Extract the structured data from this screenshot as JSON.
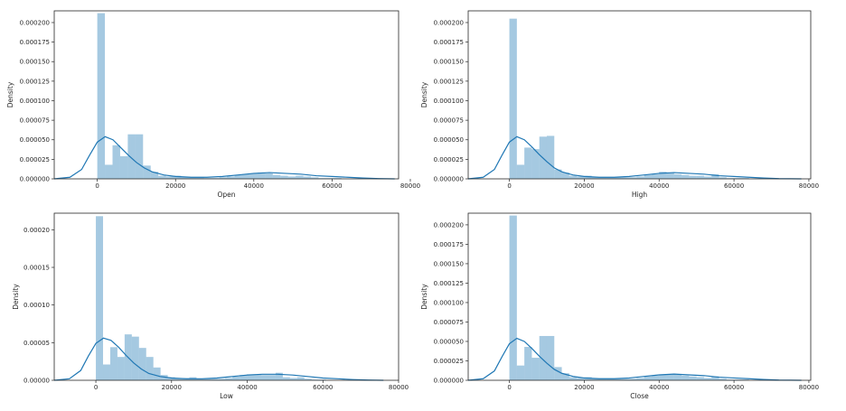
{
  "chart_data": [
    {
      "type": "histogram+kde",
      "xlabel": "Open",
      "ylabel": "Density",
      "xlim": [
        -11000,
        77000
      ],
      "ylim": [
        0,
        0.000215
      ],
      "xticks": [
        "0",
        "20000",
        "40000",
        "60000",
        "80000"
      ],
      "yticks": [
        "0.000000",
        "0.000025",
        "0.000050",
        "0.000075",
        "0.000100",
        "0.000125",
        "0.000150",
        "0.000175",
        "0.000200"
      ],
      "bin_width": 1950,
      "bin_start": 0,
      "values": [
        0.000212,
        1.8e-05,
        4.3e-05,
        2.9e-05,
        5.7e-05,
        5.7e-05,
        1.7e-05,
        9e-06,
        4e-06,
        3e-06,
        4e-06,
        2e-06,
        2e-06,
        2e-06,
        1e-06,
        1e-06,
        2e-06,
        3e-06,
        5e-06,
        6e-06,
        7e-06,
        8e-06,
        7e-06,
        5e-06,
        4e-06,
        3e-06,
        4e-06,
        3e-06,
        2e-06,
        1e-06,
        1e-06,
        1e-06
      ],
      "kde_x": [
        -11000,
        -7000,
        -4000,
        -2000,
        0,
        2000,
        4000,
        6000,
        8000,
        10000,
        12000,
        14000,
        17000,
        20000,
        24000,
        28000,
        32000,
        36000,
        40000,
        44000,
        48000,
        52000,
        56000,
        60000,
        64000,
        68000,
        72000,
        76000
      ],
      "kde_y": [
        0,
        2e-06,
        1.2e-05,
        3e-05,
        4.7e-05,
        5.4e-05,
        5e-05,
        4e-05,
        3e-05,
        2.1e-05,
        1.4e-05,
        9e-06,
        5e-06,
        3e-06,
        2e-06,
        2e-06,
        3e-06,
        5e-06,
        7e-06,
        8e-06,
        7e-06,
        6e-06,
        4e-06,
        3e-06,
        2e-06,
        1e-06,
        3e-07,
        0
      ]
    },
    {
      "type": "histogram+kde",
      "xlabel": "High",
      "ylabel": "Density",
      "xlim": [
        -11000,
        80500
      ],
      "ylim": [
        0,
        0.000215
      ],
      "xticks": [
        "0",
        "20000",
        "40000",
        "60000",
        "80000"
      ],
      "yticks": [
        "0.000000",
        "0.000025",
        "0.000050",
        "0.000075",
        "0.000100",
        "0.000125",
        "0.000150",
        "0.000175",
        "0.000200"
      ],
      "bin_width": 2000,
      "bin_start": 0,
      "values": [
        0.000205,
        1.8e-05,
        4e-05,
        3.8e-05,
        5.4e-05,
        5.5e-05,
        1.2e-05,
        8e-06,
        4e-06,
        3e-06,
        4e-06,
        2e-06,
        2e-06,
        2e-06,
        2e-06,
        2e-06,
        2e-06,
        3e-06,
        5e-06,
        6e-06,
        9e-06,
        8e-06,
        6e-06,
        5e-06,
        4e-06,
        4e-06,
        3e-06,
        6e-06,
        2e-06,
        1e-06,
        1e-06,
        1e-06
      ],
      "kde_x": [
        -11000,
        -7000,
        -4000,
        -2000,
        0,
        2000,
        4000,
        6000,
        8000,
        10000,
        12000,
        14000,
        17000,
        20000,
        24000,
        28000,
        32000,
        36000,
        40000,
        44000,
        48000,
        52000,
        56000,
        60000,
        64000,
        68000,
        72000,
        78000
      ],
      "kde_y": [
        0,
        2e-06,
        1.2e-05,
        3e-05,
        4.7e-05,
        5.4e-05,
        5e-05,
        4.1e-05,
        3.1e-05,
        2.2e-05,
        1.4e-05,
        9e-06,
        5e-06,
        3e-06,
        2e-06,
        2e-06,
        3e-06,
        5e-06,
        7e-06,
        8e-06,
        7e-06,
        6e-06,
        4e-06,
        3e-06,
        2e-06,
        1e-06,
        3e-07,
        0
      ]
    },
    {
      "type": "histogram+kde",
      "xlabel": "Low",
      "ylabel": "Density",
      "xlim": [
        -11000,
        80000
      ],
      "ylim": [
        0,
        0.000222
      ],
      "xticks": [
        "0",
        "20000",
        "40000",
        "60000",
        "80000"
      ],
      "yticks": [
        "0.00000",
        "0.00005",
        "0.00010",
        "0.00015",
        "0.00020"
      ],
      "bin_width": 1900,
      "bin_start": 0,
      "values": [
        0.000218,
        2.1e-05,
        4.4e-05,
        3.1e-05,
        6.1e-05,
        5.8e-05,
        4.3e-05,
        3.1e-05,
        1.7e-05,
        7e-06,
        4e-06,
        3e-06,
        3e-06,
        4e-06,
        2e-06,
        2e-06,
        2e-06,
        2e-06,
        3e-06,
        5e-06,
        7e-06,
        8e-06,
        8e-06,
        7e-06,
        7e-06,
        1e-05,
        4e-06,
        3e-06,
        4e-06,
        2e-06,
        1e-06,
        1e-06
      ],
      "kde_x": [
        -11000,
        -7000,
        -4000,
        -2000,
        0,
        2000,
        4000,
        6000,
        8000,
        10000,
        12000,
        14000,
        17000,
        20000,
        24000,
        28000,
        32000,
        36000,
        40000,
        44000,
        48000,
        52000,
        56000,
        60000,
        64000,
        68000,
        72000,
        76000
      ],
      "kde_y": [
        0,
        2e-06,
        1.3e-05,
        3.2e-05,
        4.9e-05,
        5.6e-05,
        5.3e-05,
        4.4e-05,
        3.3e-05,
        2.3e-05,
        1.5e-05,
        9e-06,
        5e-06,
        3e-06,
        2e-06,
        2e-06,
        3e-06,
        5e-06,
        7e-06,
        8e-06,
        8e-06,
        7e-06,
        5e-06,
        3e-06,
        2e-06,
        1e-06,
        3e-07,
        0
      ]
    },
    {
      "type": "histogram+kde",
      "xlabel": "Close",
      "ylabel": "Density",
      "xlim": [
        -11000,
        80500
      ],
      "ylim": [
        0,
        0.000215
      ],
      "xticks": [
        "0",
        "20000",
        "40000",
        "60000",
        "80000"
      ],
      "yticks": [
        "0.000000",
        "0.000025",
        "0.000050",
        "0.000075",
        "0.000100",
        "0.000125",
        "0.000150",
        "0.000175",
        "0.000200"
      ],
      "bin_width": 2000,
      "bin_start": 0,
      "values": [
        0.000212,
        1.9e-05,
        4.3e-05,
        2.9e-05,
        5.7e-05,
        5.7e-05,
        1.7e-05,
        9e-06,
        4e-06,
        3e-06,
        4e-06,
        2e-06,
        2e-06,
        2e-06,
        2e-06,
        2e-06,
        2e-06,
        3e-06,
        5e-06,
        6e-06,
        7e-06,
        8e-06,
        8e-06,
        6e-06,
        5e-06,
        4e-06,
        3e-06,
        5e-06,
        2e-06,
        1e-06,
        1e-06,
        1e-06
      ],
      "kde_x": [
        -11000,
        -7000,
        -4000,
        -2000,
        0,
        2000,
        4000,
        6000,
        8000,
        10000,
        12000,
        14000,
        17000,
        20000,
        24000,
        28000,
        32000,
        36000,
        40000,
        44000,
        48000,
        52000,
        56000,
        60000,
        64000,
        68000,
        72000,
        78000
      ],
      "kde_y": [
        0,
        2e-06,
        1.2e-05,
        3e-05,
        4.7e-05,
        5.4e-05,
        5e-05,
        4.1e-05,
        3.1e-05,
        2.2e-05,
        1.4e-05,
        9e-06,
        5e-06,
        3e-06,
        2e-06,
        2e-06,
        3e-06,
        5e-06,
        7e-06,
        8e-06,
        7e-06,
        6e-06,
        4e-06,
        3e-06,
        2e-06,
        1e-06,
        3e-07,
        0
      ]
    }
  ],
  "colors": {
    "bar": "#1f77b4",
    "line": "#1f77b4",
    "axis": "#262626"
  }
}
